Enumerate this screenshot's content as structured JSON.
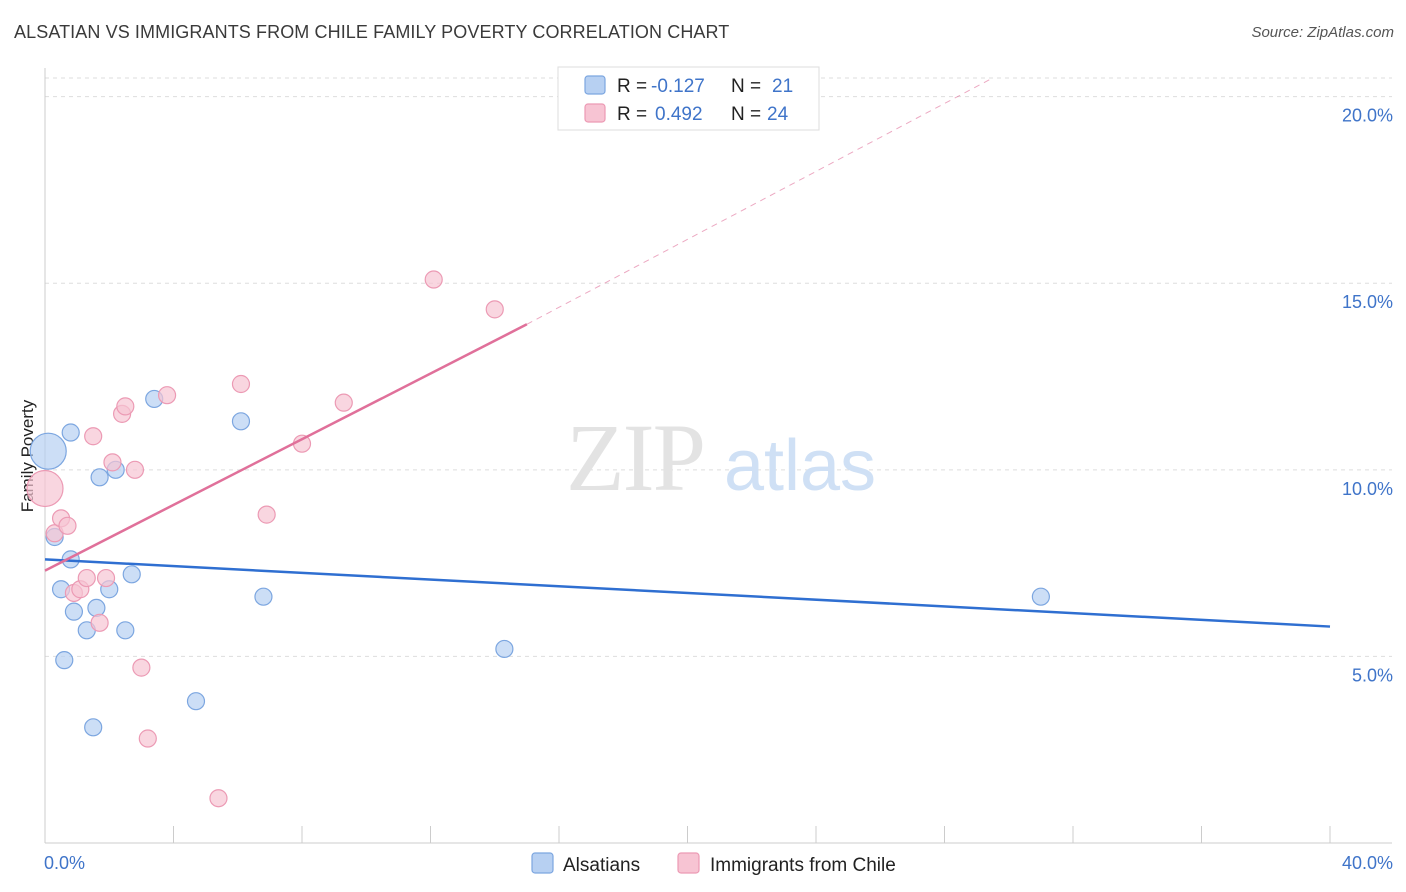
{
  "title": "ALSATIAN VS IMMIGRANTS FROM CHILE FAMILY POVERTY CORRELATION CHART",
  "source": "Source: ZipAtlas.com",
  "watermark": {
    "zip": "ZIP",
    "atlas": "atlas"
  },
  "colors": {
    "blue_fill": "#b7d0f2",
    "blue_stroke": "#7ca6e0",
    "blue_line": "#2f6fd1",
    "pink_fill": "#f7c4d3",
    "pink_stroke": "#ec9ab4",
    "pink_line": "#e0709a",
    "tick_text": "#3f74c9",
    "grid": "#dddddd"
  },
  "legend": [
    {
      "r_label": "R =",
      "r_value": "-0.127",
      "n_label": "N =",
      "n_value": "21"
    },
    {
      "r_label": "R =",
      "r_value": "0.492",
      "n_label": "N =",
      "n_value": "24"
    }
  ],
  "bottom_legend": [
    "Alsatians",
    "Immigrants from Chile"
  ],
  "chart_data": {
    "type": "scatter",
    "title": "ALSATIAN VS IMMIGRANTS FROM CHILE FAMILY POVERTY CORRELATION CHART",
    "xlabel": "",
    "ylabel": "Family Poverty",
    "xlim": [
      0,
      40
    ],
    "ylim": [
      0,
      20.5
    ],
    "x_ticks": [
      "0.0%",
      "40.0%"
    ],
    "y_ticks": [
      {
        "value": 5,
        "label": "5.0%"
      },
      {
        "value": 10,
        "label": "10.0%"
      },
      {
        "value": 15,
        "label": "15.0%"
      },
      {
        "value": 20,
        "label": "20.0%"
      }
    ],
    "grid": "horizontal dashed",
    "legend_position": "top-center",
    "series": [
      {
        "name": "Alsatians",
        "r": -0.127,
        "n": 21,
        "trend": {
          "x0": 0,
          "y0": 7.6,
          "x1": 40,
          "y1": 5.8
        },
        "points": [
          {
            "x": 0.1,
            "y": 10.5,
            "big": true
          },
          {
            "x": 0.3,
            "y": 8.2
          },
          {
            "x": 0.5,
            "y": 6.8
          },
          {
            "x": 0.6,
            "y": 4.9
          },
          {
            "x": 0.8,
            "y": 7.6
          },
          {
            "x": 0.8,
            "y": 11.0
          },
          {
            "x": 0.9,
            "y": 6.2
          },
          {
            "x": 1.3,
            "y": 5.7
          },
          {
            "x": 1.6,
            "y": 6.3
          },
          {
            "x": 1.7,
            "y": 9.8
          },
          {
            "x": 2.0,
            "y": 6.8
          },
          {
            "x": 2.2,
            "y": 10.0
          },
          {
            "x": 2.5,
            "y": 5.7
          },
          {
            "x": 1.5,
            "y": 3.1
          },
          {
            "x": 2.7,
            "y": 7.2
          },
          {
            "x": 3.4,
            "y": 11.9
          },
          {
            "x": 4.7,
            "y": 3.8
          },
          {
            "x": 6.1,
            "y": 11.3
          },
          {
            "x": 6.8,
            "y": 6.6
          },
          {
            "x": 14.3,
            "y": 5.2
          },
          {
            "x": 31.0,
            "y": 6.6
          }
        ]
      },
      {
        "name": "Immigrants from Chile",
        "r": 0.492,
        "n": 24,
        "trend": {
          "x0": 0,
          "y0": 7.3,
          "x1": 15.0,
          "y1": 13.9,
          "dash_x1": 29.5,
          "dash_y1": 20.5
        },
        "points": [
          {
            "x": 0.0,
            "y": 9.5,
            "big": true
          },
          {
            "x": 0.3,
            "y": 8.3
          },
          {
            "x": 0.5,
            "y": 8.7
          },
          {
            "x": 0.7,
            "y": 8.5
          },
          {
            "x": 0.9,
            "y": 6.7
          },
          {
            "x": 1.1,
            "y": 6.8
          },
          {
            "x": 1.3,
            "y": 7.1
          },
          {
            "x": 1.5,
            "y": 10.9
          },
          {
            "x": 1.7,
            "y": 5.9
          },
          {
            "x": 1.9,
            "y": 7.1
          },
          {
            "x": 2.1,
            "y": 10.2
          },
          {
            "x": 2.4,
            "y": 11.5
          },
          {
            "x": 2.5,
            "y": 11.7
          },
          {
            "x": 2.8,
            "y": 10.0
          },
          {
            "x": 3.0,
            "y": 4.7
          },
          {
            "x": 3.2,
            "y": 2.8
          },
          {
            "x": 3.8,
            "y": 12.0
          },
          {
            "x": 5.4,
            "y": 1.2
          },
          {
            "x": 6.1,
            "y": 12.3
          },
          {
            "x": 6.9,
            "y": 8.8
          },
          {
            "x": 8.0,
            "y": 10.7
          },
          {
            "x": 9.3,
            "y": 11.8
          },
          {
            "x": 12.1,
            "y": 15.1
          },
          {
            "x": 14.0,
            "y": 14.3
          }
        ]
      }
    ]
  }
}
